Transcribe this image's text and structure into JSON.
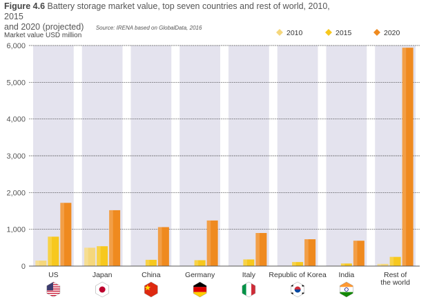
{
  "figure": {
    "label": "Figure 4.6",
    "title_line1": "Battery storage market value, top seven countries and rest of world, 2010, 2015",
    "title_line2": "and 2020 (projected)",
    "source": "Source: IRENA based on GlobalData, 2016"
  },
  "chart_data": {
    "type": "bar",
    "ylabel": "Market value USD million",
    "ylim": [
      0,
      6000
    ],
    "yticks": [
      "0",
      "1,000",
      "2,000",
      "3,000",
      "4,000",
      "5,000",
      "6,000"
    ],
    "ytick_values": [
      0,
      1000,
      2000,
      3000,
      4000,
      5000,
      6000
    ],
    "grid": true,
    "legend_position": "top-right",
    "categories": [
      "US",
      "Japan",
      "China",
      "Germany",
      "Italy",
      "Republic of Korea",
      "India",
      "Rest of\nthe world"
    ],
    "series": [
      {
        "name": "2010",
        "color": "#f5d77c",
        "values": [
          150,
          500,
          10,
          10,
          10,
          10,
          10,
          60
        ]
      },
      {
        "name": "2015",
        "color": "#f7c81e",
        "values": [
          800,
          540,
          170,
          160,
          180,
          110,
          70,
          250
        ]
      },
      {
        "name": "2020",
        "color": "#ef8a1f",
        "values": [
          1720,
          1520,
          1060,
          1240,
          900,
          730,
          690,
          5940
        ]
      }
    ]
  },
  "flags": [
    "us-flag-icon",
    "japan-flag-icon",
    "china-flag-icon",
    "germany-flag-icon",
    "italy-flag-icon",
    "korea-flag-icon",
    "india-flag-icon"
  ]
}
